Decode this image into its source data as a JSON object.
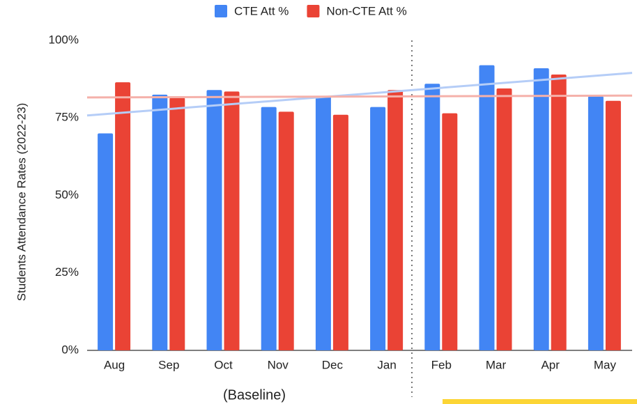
{
  "chart_data": {
    "type": "bar",
    "y_label": "Students Attendance Rates (2022-23)",
    "categories": [
      "Aug",
      "Sep",
      "Oct",
      "Nov",
      "Dec",
      "Jan",
      "Feb",
      "Mar",
      "Apr",
      "May"
    ],
    "series": [
      {
        "name": "CTE Att %",
        "color": "#4285f4",
        "trend_color": "#b5cdf7",
        "values": [
          70,
          82.5,
          84,
          78.5,
          82,
          78.5,
          86,
          92,
          91,
          82
        ]
      },
      {
        "name": "Non-CTE Att %",
        "color": "#ea4335",
        "trend_color": "#f5b1aa",
        "values": [
          86.5,
          81.5,
          83.5,
          77,
          76,
          84,
          76.5,
          84.5,
          89,
          80.5
        ]
      }
    ],
    "ylim": [
      0,
      100
    ],
    "yticks": [
      {
        "value": 0,
        "label": "0%"
      },
      {
        "value": 25,
        "label": "25%"
      },
      {
        "value": 50,
        "label": "50%"
      },
      {
        "value": 75,
        "label": "75%"
      },
      {
        "value": 100,
        "label": "100%"
      }
    ],
    "grid": false,
    "trendline": true,
    "legend": "top",
    "annotation": "(Baseline)"
  }
}
